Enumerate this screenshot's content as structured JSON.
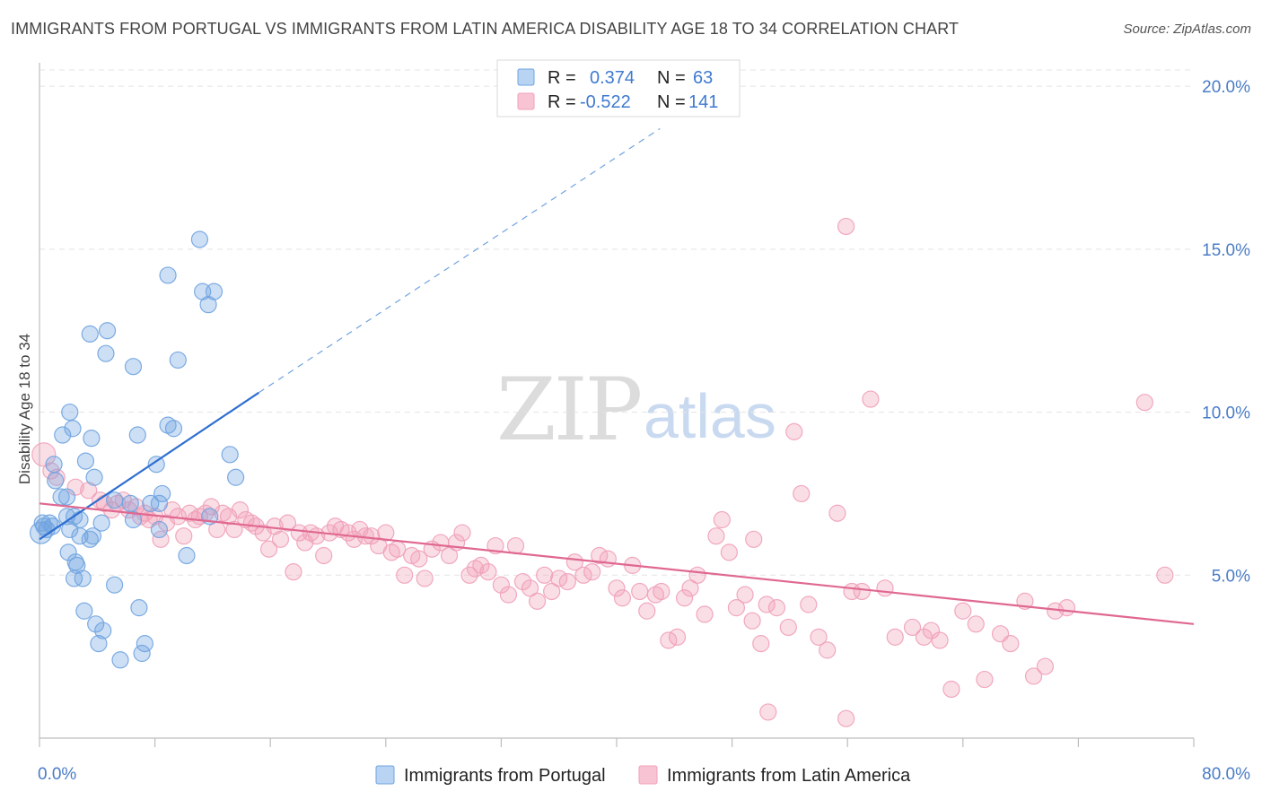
{
  "title": "IMMIGRANTS FROM PORTUGAL VS IMMIGRANTS FROM LATIN AMERICA DISABILITY AGE 18 TO 34 CORRELATION CHART",
  "source": "Source: ZipAtlas.com",
  "watermark": {
    "part1": "ZIP",
    "part2": "atlas"
  },
  "colors": {
    "portugal": "#6fa3e0",
    "portugal_line": "#2f6fd0",
    "latam": "#f0a0b8",
    "latam_line": "#e06890",
    "axis_text": "#4a7cc7"
  },
  "legend": {
    "r_label": "R =",
    "n_label": "N =",
    "rows": [
      {
        "r": "0.374",
        "n": "63"
      },
      {
        "r": "-0.522",
        "n": "141"
      }
    ]
  },
  "chart_data": {
    "type": "scatter",
    "title": "IMMIGRANTS FROM PORTUGAL VS IMMIGRANTS FROM LATIN AMERICA DISABILITY AGE 18 TO 34 CORRELATION CHART",
    "xlabel": "",
    "ylabel": "Disability Age 18 to 34",
    "xlim": [
      0,
      80
    ],
    "ylim": [
      0,
      20.5
    ],
    "x_tick_labels": [
      "0.0%",
      "80.0%"
    ],
    "y_ticks": [
      5,
      10,
      15,
      20
    ],
    "y_tick_labels": [
      "5.0%",
      "10.0%",
      "15.0%",
      "20.0%"
    ],
    "grid": true,
    "legend_position": "top-center",
    "series": [
      {
        "name": "Immigrants from Portugal",
        "r": 0.374,
        "n": 63,
        "trend": {
          "x": [
            0,
            15.2
          ],
          "y": [
            6.1,
            10.6
          ],
          "dashed_to": [
            43.0,
            18.7
          ]
        },
        "points": [
          [
            0.1,
            6.3
          ],
          [
            0.2,
            6.6
          ],
          [
            0.3,
            6.5
          ],
          [
            0.5,
            6.4
          ],
          [
            0.7,
            6.6
          ],
          [
            0.9,
            6.5
          ],
          [
            1.1,
            7.9
          ],
          [
            1.0,
            8.4
          ],
          [
            1.5,
            7.4
          ],
          [
            1.6,
            9.3
          ],
          [
            1.9,
            6.8
          ],
          [
            2.1,
            6.4
          ],
          [
            2.0,
            5.7
          ],
          [
            2.4,
            6.8
          ],
          [
            1.9,
            7.4
          ],
          [
            2.1,
            10.0
          ],
          [
            2.3,
            9.5
          ],
          [
            2.5,
            5.4
          ],
          [
            2.4,
            4.9
          ],
          [
            2.6,
            5.3
          ],
          [
            2.8,
            6.2
          ],
          [
            2.8,
            6.7
          ],
          [
            3.0,
            4.9
          ],
          [
            3.1,
            3.9
          ],
          [
            3.2,
            8.5
          ],
          [
            3.5,
            12.4
          ],
          [
            3.6,
            9.2
          ],
          [
            3.5,
            6.1
          ],
          [
            3.7,
            6.2
          ],
          [
            3.8,
            8.0
          ],
          [
            3.9,
            3.5
          ],
          [
            4.1,
            2.9
          ],
          [
            4.3,
            6.6
          ],
          [
            4.4,
            3.3
          ],
          [
            4.6,
            11.8
          ],
          [
            4.7,
            12.5
          ],
          [
            5.2,
            4.7
          ],
          [
            5.2,
            7.3
          ],
          [
            5.6,
            2.4
          ],
          [
            6.3,
            7.2
          ],
          [
            6.5,
            6.7
          ],
          [
            6.5,
            11.4
          ],
          [
            6.8,
            9.3
          ],
          [
            6.9,
            4.0
          ],
          [
            7.1,
            2.6
          ],
          [
            7.3,
            2.9
          ],
          [
            7.7,
            7.2
          ],
          [
            8.1,
            8.4
          ],
          [
            8.3,
            6.4
          ],
          [
            8.3,
            7.2
          ],
          [
            8.5,
            7.5
          ],
          [
            8.9,
            14.2
          ],
          [
            8.9,
            9.6
          ],
          [
            9.3,
            9.5
          ],
          [
            9.6,
            11.6
          ],
          [
            10.2,
            5.6
          ],
          [
            11.1,
            15.3
          ],
          [
            11.3,
            13.7
          ],
          [
            11.7,
            13.3
          ],
          [
            12.1,
            13.7
          ],
          [
            11.8,
            6.8
          ],
          [
            13.2,
            8.7
          ],
          [
            13.6,
            8.0
          ]
        ]
      },
      {
        "name": "Immigrants from Latin America",
        "r": -0.522,
        "n": 141,
        "trend": {
          "x": [
            0,
            80
          ],
          "y": [
            7.2,
            3.5
          ]
        },
        "points": [
          [
            0.3,
            8.7
          ],
          [
            0.8,
            8.2
          ],
          [
            1.2,
            8.0
          ],
          [
            2.5,
            7.7
          ],
          [
            3.4,
            7.6
          ],
          [
            4.2,
            7.3
          ],
          [
            4.5,
            7.2
          ],
          [
            5.0,
            7.0
          ],
          [
            5.4,
            7.2
          ],
          [
            5.8,
            7.3
          ],
          [
            6.2,
            7.0
          ],
          [
            6.7,
            7.1
          ],
          [
            7.0,
            6.8
          ],
          [
            7.3,
            6.9
          ],
          [
            7.6,
            6.7
          ],
          [
            8.0,
            6.8
          ],
          [
            8.4,
            6.1
          ],
          [
            8.8,
            6.6
          ],
          [
            9.2,
            7.0
          ],
          [
            9.6,
            6.8
          ],
          [
            10.0,
            6.2
          ],
          [
            10.4,
            6.9
          ],
          [
            10.8,
            6.7
          ],
          [
            11.1,
            6.8
          ],
          [
            11.5,
            6.9
          ],
          [
            11.9,
            7.1
          ],
          [
            12.3,
            6.4
          ],
          [
            12.7,
            6.9
          ],
          [
            13.1,
            6.8
          ],
          [
            13.5,
            6.4
          ],
          [
            13.9,
            7.0
          ],
          [
            14.3,
            6.7
          ],
          [
            14.7,
            6.6
          ],
          [
            15.0,
            6.5
          ],
          [
            15.5,
            6.3
          ],
          [
            15.9,
            5.8
          ],
          [
            16.3,
            6.5
          ],
          [
            16.7,
            6.1
          ],
          [
            17.2,
            6.6
          ],
          [
            17.6,
            5.1
          ],
          [
            18.0,
            6.3
          ],
          [
            18.4,
            6.0
          ],
          [
            18.8,
            6.3
          ],
          [
            19.2,
            6.2
          ],
          [
            19.7,
            5.6
          ],
          [
            20.1,
            6.3
          ],
          [
            20.5,
            6.5
          ],
          [
            20.9,
            6.4
          ],
          [
            21.4,
            6.3
          ],
          [
            21.8,
            6.1
          ],
          [
            22.2,
            6.4
          ],
          [
            22.6,
            6.2
          ],
          [
            23.0,
            6.2
          ],
          [
            23.5,
            5.9
          ],
          [
            24.0,
            6.3
          ],
          [
            24.4,
            5.7
          ],
          [
            24.8,
            5.8
          ],
          [
            25.3,
            5.0
          ],
          [
            25.8,
            5.6
          ],
          [
            26.3,
            5.5
          ],
          [
            26.7,
            4.9
          ],
          [
            27.2,
            5.8
          ],
          [
            27.8,
            6.0
          ],
          [
            28.4,
            5.6
          ],
          [
            28.9,
            6.0
          ],
          [
            29.3,
            6.3
          ],
          [
            29.8,
            5.0
          ],
          [
            30.2,
            5.2
          ],
          [
            30.6,
            5.3
          ],
          [
            31.1,
            5.1
          ],
          [
            31.6,
            5.9
          ],
          [
            32.0,
            4.7
          ],
          [
            32.5,
            4.4
          ],
          [
            33.0,
            5.9
          ],
          [
            33.5,
            4.8
          ],
          [
            34.0,
            4.6
          ],
          [
            34.5,
            4.2
          ],
          [
            35.0,
            5.0
          ],
          [
            35.5,
            4.5
          ],
          [
            36.0,
            4.9
          ],
          [
            36.6,
            4.8
          ],
          [
            37.1,
            5.4
          ],
          [
            37.7,
            5.0
          ],
          [
            38.3,
            5.1
          ],
          [
            38.8,
            5.6
          ],
          [
            39.4,
            5.5
          ],
          [
            40.0,
            4.6
          ],
          [
            40.4,
            4.3
          ],
          [
            41.1,
            5.3
          ],
          [
            41.6,
            4.5
          ],
          [
            42.1,
            3.9
          ],
          [
            42.7,
            4.4
          ],
          [
            43.1,
            4.5
          ],
          [
            43.6,
            3.0
          ],
          [
            44.2,
            3.1
          ],
          [
            44.7,
            4.3
          ],
          [
            45.1,
            4.6
          ],
          [
            45.6,
            5.0
          ],
          [
            46.1,
            3.8
          ],
          [
            46.9,
            6.2
          ],
          [
            47.3,
            6.7
          ],
          [
            47.8,
            5.7
          ],
          [
            48.3,
            4.0
          ],
          [
            48.9,
            4.4
          ],
          [
            49.4,
            3.6
          ],
          [
            50.0,
            2.9
          ],
          [
            50.4,
            4.1
          ],
          [
            51.1,
            4.0
          ],
          [
            51.9,
            3.4
          ],
          [
            52.3,
            9.4
          ],
          [
            52.8,
            7.5
          ],
          [
            53.3,
            4.1
          ],
          [
            54.0,
            3.1
          ],
          [
            54.6,
            2.7
          ],
          [
            55.3,
            6.9
          ],
          [
            55.9,
            15.7
          ],
          [
            56.3,
            4.5
          ],
          [
            57.0,
            4.5
          ],
          [
            57.6,
            10.4
          ],
          [
            58.6,
            4.6
          ],
          [
            59.3,
            3.1
          ],
          [
            60.5,
            3.4
          ],
          [
            61.3,
            3.1
          ],
          [
            61.8,
            3.3
          ],
          [
            62.4,
            3.0
          ],
          [
            63.2,
            1.5
          ],
          [
            64.0,
            3.9
          ],
          [
            64.9,
            3.5
          ],
          [
            65.5,
            1.8
          ],
          [
            66.6,
            3.2
          ],
          [
            67.3,
            2.9
          ],
          [
            68.3,
            4.2
          ],
          [
            68.9,
            1.9
          ],
          [
            69.7,
            2.2
          ],
          [
            70.4,
            3.9
          ],
          [
            71.2,
            4.0
          ],
          [
            76.6,
            10.3
          ],
          [
            78.0,
            5.0
          ],
          [
            49.5,
            6.1
          ],
          [
            50.5,
            0.8
          ],
          [
            55.9,
            0.6
          ]
        ]
      }
    ]
  }
}
